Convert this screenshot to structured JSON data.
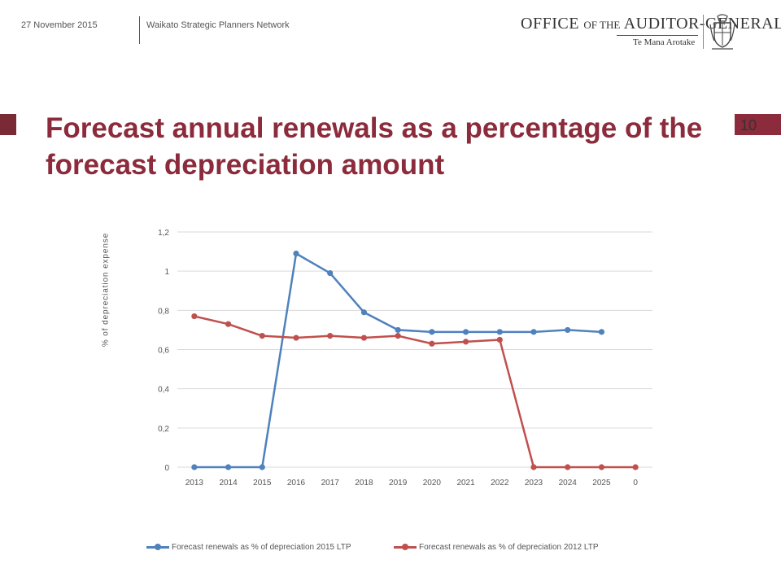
{
  "header": {
    "date": "27 November 2015",
    "network": "Waikato Strategic Planners Network",
    "logo_office": "OFFICE",
    "logo_ofthe": "OF THE",
    "logo_auditor": "AUDITOR-GENERAL",
    "logo_subtitle": "Te Mana Arotake"
  },
  "slide": {
    "title": "Forecast annual renewals as a percentage of the forecast depreciation amount",
    "page_number": "10"
  },
  "colors": {
    "accent": "#8b2b3b",
    "series_2015": "#4f81bd",
    "series_2012": "#c0504d"
  },
  "chart_data": {
    "type": "line",
    "title": "",
    "xlabel": "",
    "ylabel": "% of depreciation expense",
    "categories": [
      "2013",
      "2014",
      "2015",
      "2016",
      "2017",
      "2018",
      "2019",
      "2020",
      "2021",
      "2022",
      "2023",
      "2024",
      "2025",
      "0"
    ],
    "y_tick_labels": [
      "0",
      "0,2",
      "0,4",
      "0,6",
      "0,8",
      "1",
      "1,2"
    ],
    "ylim": [
      0,
      1.2
    ],
    "grid": true,
    "legend_position": "bottom",
    "series": [
      {
        "name": "Forecast renewals as % of depreciation 2015 LTP",
        "color": "#4f81bd",
        "values": [
          0,
          0,
          0,
          1.09,
          0.99,
          0.79,
          0.7,
          0.69,
          0.69,
          0.69,
          0.69,
          0.7,
          0.69,
          null
        ]
      },
      {
        "name": "Forecast renewals as % of depreciation 2012 LTP",
        "color": "#c0504d",
        "values": [
          0.77,
          0.73,
          0.67,
          0.66,
          0.67,
          0.66,
          0.67,
          0.63,
          0.64,
          0.65,
          0,
          0,
          0,
          0
        ]
      }
    ]
  }
}
